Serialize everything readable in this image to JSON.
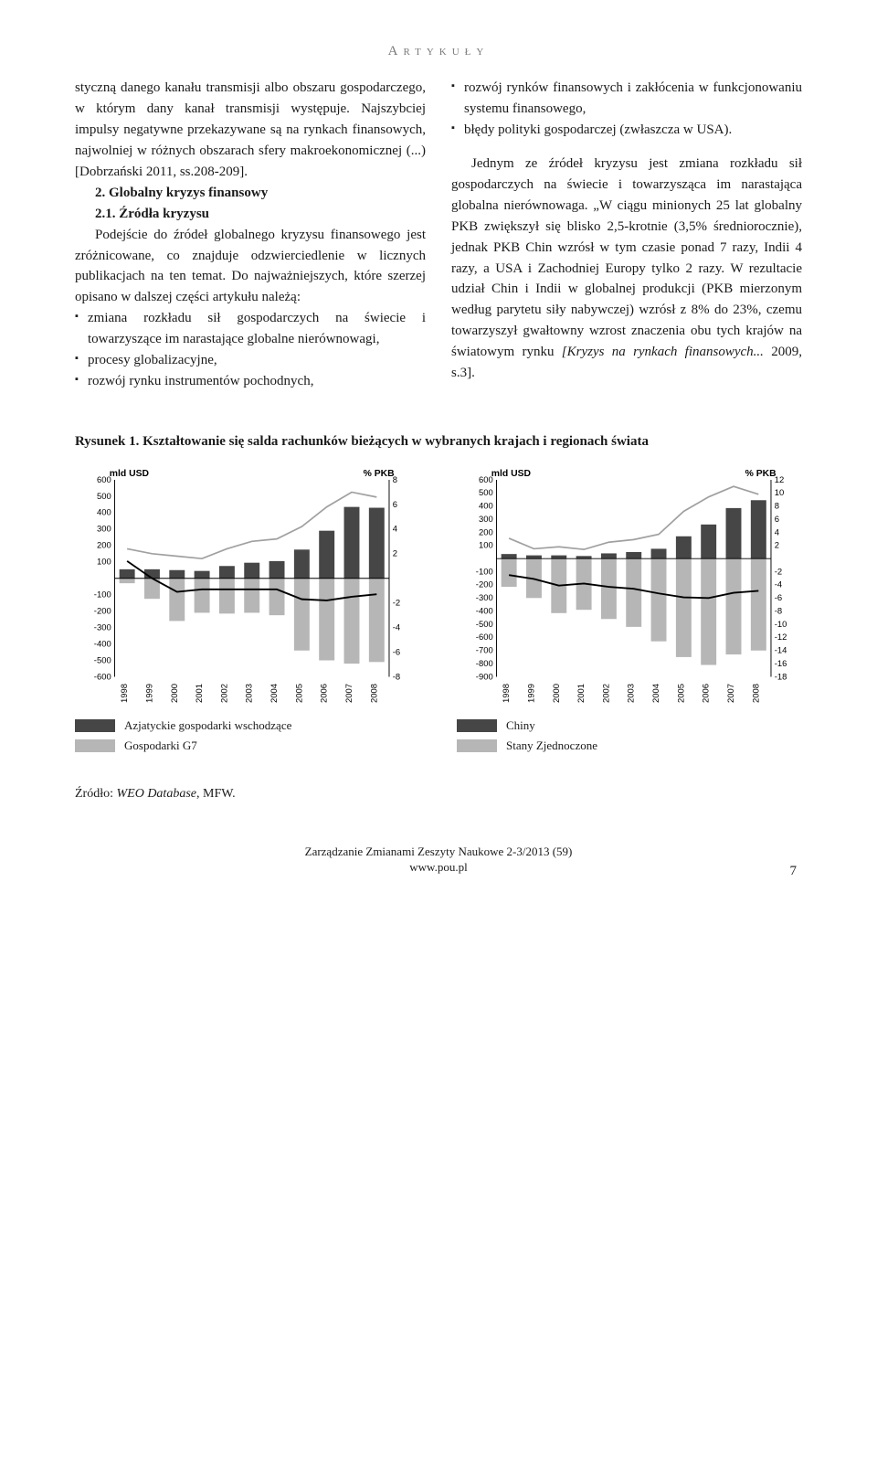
{
  "header": "Artykuły",
  "left_col": {
    "p1": "styczną danego kanału transmisji albo obszaru gospodarczego, w którym dany kanał transmisji występuje. Najszybciej impulsy negatywne przekazywane są na rynkach finansowych, najwolniej w różnych obszarach sfery makroekonomicznej (...) [Dobrzański 2011, ss.208-209].",
    "p2_title": "2. Globalny kryzys finansowy",
    "p2_sub": "2.1. Źródła kryzysu",
    "p2": "Podejście do źródeł globalnego kryzysu finansowego jest zróżnicowane, co znajduje odzwierciedlenie w licznych publikacjach na ten temat. Do najważniejszych, które szerzej opisano w dalszej części artykułu należą:",
    "bullets": [
      "zmiana rozkładu sił gospodarczych na świecie i towarzyszące im narastające globalne nierównowagi,",
      "procesy globalizacyjne,",
      "rozwój rynku instrumentów pochodnych,"
    ]
  },
  "right_col": {
    "bullets": [
      "rozwój rynków finansowych i zakłócenia w funkcjonowaniu systemu finansowego,",
      "błędy polityki gospodarczej (zwłaszcza w USA)."
    ],
    "p1": "Jednym ze źródeł kryzysu jest zmiana rozkładu sił gospodarczych na świecie i towarzysząca im narastająca globalna nierównowaga. „W ciągu minionych 25 lat globalny PKB zwiększył się blisko 2,5-krotnie (3,5% średniorocznie), jednak PKB Chin wzrósł w tym czasie ponad 7 razy, Indii 4 razy, a USA i Zachodniej Europy tylko 2 razy. W rezultacie udział Chin i Indii w globalnej produkcji (PKB mierzonym według parytetu siły nabywczej) wzrósł z 8% do 23%, czemu towarzyszył gwałtowny wzrost znaczenia obu tych krajów na światowym rynku",
    "p1_italic": "[Kryzys na rynkach finansowych...",
    "p1_end": " 2009, s.3]."
  },
  "figure": {
    "caption": "Rysunek 1. Kształtowanie się salda rachunków bieżących w wybranych krajach i regionach świata",
    "left": {
      "y_title": "mld USD",
      "y2_title": "% PKB",
      "x_years": [
        "1998",
        "1999",
        "2000",
        "2001",
        "2002",
        "2003",
        "2004",
        "2005",
        "2006",
        "2007",
        "2008"
      ],
      "y_left_ticks": [
        -600,
        -500,
        -400,
        -300,
        -200,
        -100,
        100,
        200,
        300,
        400,
        500,
        600
      ],
      "y_right_ticks": [
        -8,
        -6,
        -4,
        -2,
        2,
        4,
        6,
        8
      ],
      "bar_dark": [
        55,
        55,
        50,
        45,
        75,
        95,
        105,
        175,
        290,
        435,
        430
      ],
      "bar_light": [
        -30,
        -125,
        -260,
        -210,
        -215,
        -210,
        -225,
        -440,
        -500,
        -520,
        -510
      ],
      "line_dark": [
        1.4,
        0.0,
        -1.1,
        -0.9,
        -0.9,
        -0.9,
        -0.9,
        -1.7,
        -1.8,
        -1.5,
        -1.3
      ],
      "line_light": [
        2.4,
        2.0,
        1.8,
        1.6,
        2.4,
        3.0,
        3.2,
        4.2,
        5.8,
        7.0,
        6.6
      ],
      "legend": [
        {
          "label": "Azjatyckie gospodarki wschodzące",
          "kind": "dark"
        },
        {
          "label": "Gospodarki G7",
          "kind": "light"
        }
      ]
    },
    "right": {
      "y_title": "mld USD",
      "y2_title": "% PKB",
      "x_years": [
        "1998",
        "1999",
        "2000",
        "2001",
        "2002",
        "2003",
        "2004",
        "2005",
        "2006",
        "2007",
        "2008"
      ],
      "y_left_ticks": [
        -900,
        -800,
        -700,
        -600,
        -500,
        -400,
        -300,
        -200,
        -100,
        100,
        200,
        300,
        400,
        500,
        600
      ],
      "y_right_ticks": [
        -18,
        -16,
        -14,
        -12,
        -10,
        -8,
        -6,
        -4,
        -2,
        2,
        4,
        6,
        8,
        10,
        12
      ],
      "bar_dark": [
        35,
        25,
        25,
        20,
        40,
        50,
        75,
        170,
        260,
        385,
        445
      ],
      "bar_light": [
        -215,
        -300,
        -415,
        -390,
        -460,
        -520,
        -630,
        -750,
        -810,
        -730,
        -700
      ],
      "line_dark": [
        -2.5,
        -3.1,
        -4.1,
        -3.8,
        -4.3,
        -4.6,
        -5.3,
        -5.9,
        -6.0,
        -5.2,
        -4.9
      ],
      "line_light": [
        3.1,
        1.5,
        1.8,
        1.4,
        2.5,
        2.9,
        3.7,
        7.2,
        9.4,
        11.0,
        9.8
      ],
      "legend": [
        {
          "label": "Chiny",
          "kind": "dark"
        },
        {
          "label": "Stany Zjednoczone",
          "kind": "light"
        }
      ]
    },
    "colors": {
      "dark": "#464646",
      "light": "#b6b6b6",
      "axis": "#000000",
      "line_dark": "#000000",
      "line_light": "#a0a0a0"
    }
  },
  "source_prefix": "Źródło: ",
  "source_italic": "WEO Database",
  "source_suffix": ", MFW.",
  "footer_line1": "Zarządzanie Zmianami Zeszyty Naukowe 2-3/2013 (59)",
  "footer_line2": "www.pou.pl",
  "page_number": "7"
}
